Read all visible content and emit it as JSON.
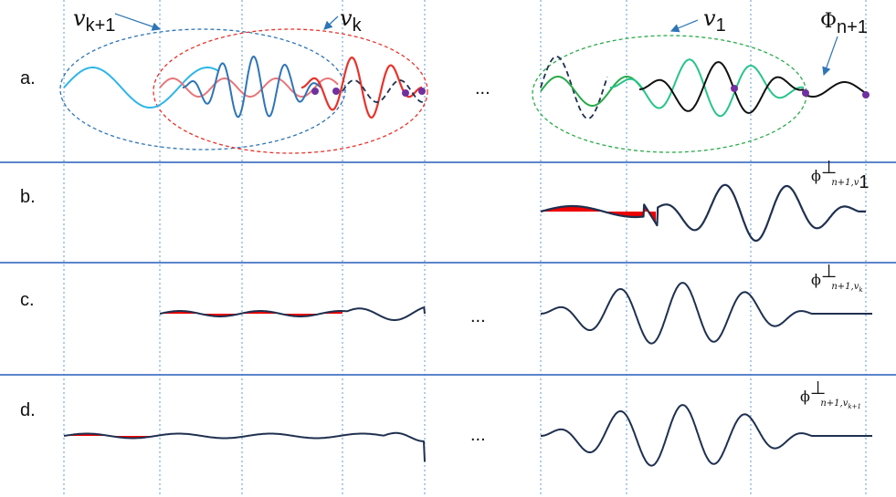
{
  "panels": [
    {
      "label": "a."
    },
    {
      "label": "b."
    },
    {
      "label": "c."
    },
    {
      "label": "d."
    }
  ],
  "ellipsis": "...",
  "annotations": {
    "v_k1": {
      "symbol": "v",
      "sub": "k+1"
    },
    "v_k": {
      "symbol": "v",
      "sub": "k"
    },
    "v_1": {
      "symbol": "v",
      "sub": "1"
    },
    "Phi": {
      "symbol": "Φ",
      "sub": "n+1"
    }
  },
  "formulas": {
    "b": {
      "base": "ϕ",
      "sup": "⊥",
      "sub": "n+1,",
      "subsub": "1"
    },
    "c": {
      "base": "ϕ",
      "sup": "⊥",
      "sub": "n+1,",
      "subsub": "k"
    },
    "d": {
      "base": "ϕ",
      "sup": "⊥",
      "sub": "n+1,",
      "subsub": "k+1"
    }
  },
  "colors": {
    "divider": "#4472c4",
    "gridline": "#5b9bd5",
    "ellipse_blue": "#2e75b6",
    "ellipse_red": "#e8322a",
    "ellipse_green": "#2aaa4a",
    "wave_lightblue": "#2eb6e8",
    "wave_blue": "#2e75b6",
    "wave_pink": "#e8767a",
    "wave_red": "#e8322a",
    "wave_green": "#2aaa4a",
    "wave_mint": "#27c48a",
    "wave_black": "#111111",
    "wave_navy": "#1f3050",
    "fill_red": "#ee0000",
    "point_purple": "#7030a0"
  }
}
